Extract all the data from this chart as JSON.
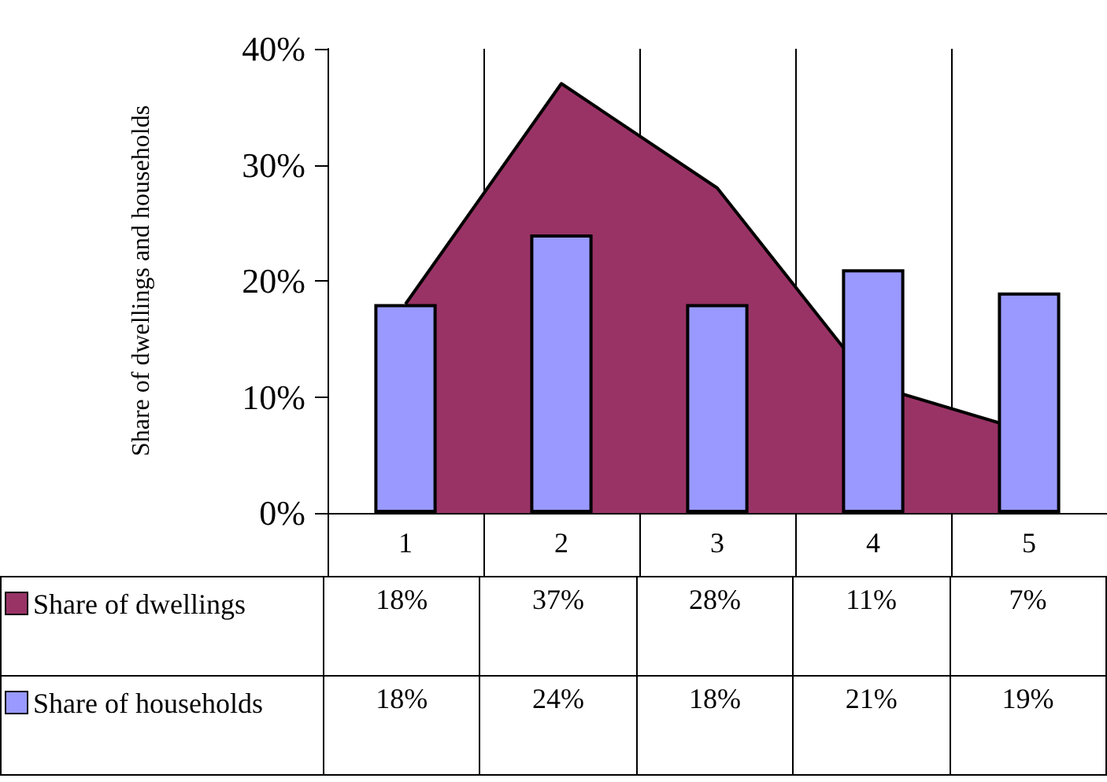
{
  "chart_data": {
    "type": "bar",
    "ylabel": "Share of dwellings and households",
    "categories": [
      "1",
      "2",
      "3",
      "4",
      "5"
    ],
    "series": [
      {
        "name": "Share of dwellings",
        "type": "area",
        "color": "#993366",
        "values": [
          18,
          37,
          28,
          11,
          7
        ],
        "value_labels": [
          "18%",
          "37%",
          "28%",
          "11%",
          "7%"
        ]
      },
      {
        "name": "Share of households",
        "color": "#9999ff",
        "values": [
          18,
          24,
          18,
          21,
          19
        ],
        "value_labels": [
          "18%",
          "24%",
          "18%",
          "21%",
          "19%"
        ]
      }
    ],
    "ylim": [
      0,
      40
    ],
    "yticks": [
      {
        "value": 0,
        "label": "0%"
      },
      {
        "value": 10,
        "label": "10%"
      },
      {
        "value": 20,
        "label": "20%"
      },
      {
        "value": 30,
        "label": "30%"
      },
      {
        "value": 40,
        "label": "40%"
      }
    ],
    "grid": "x",
    "legend": "bottom"
  }
}
